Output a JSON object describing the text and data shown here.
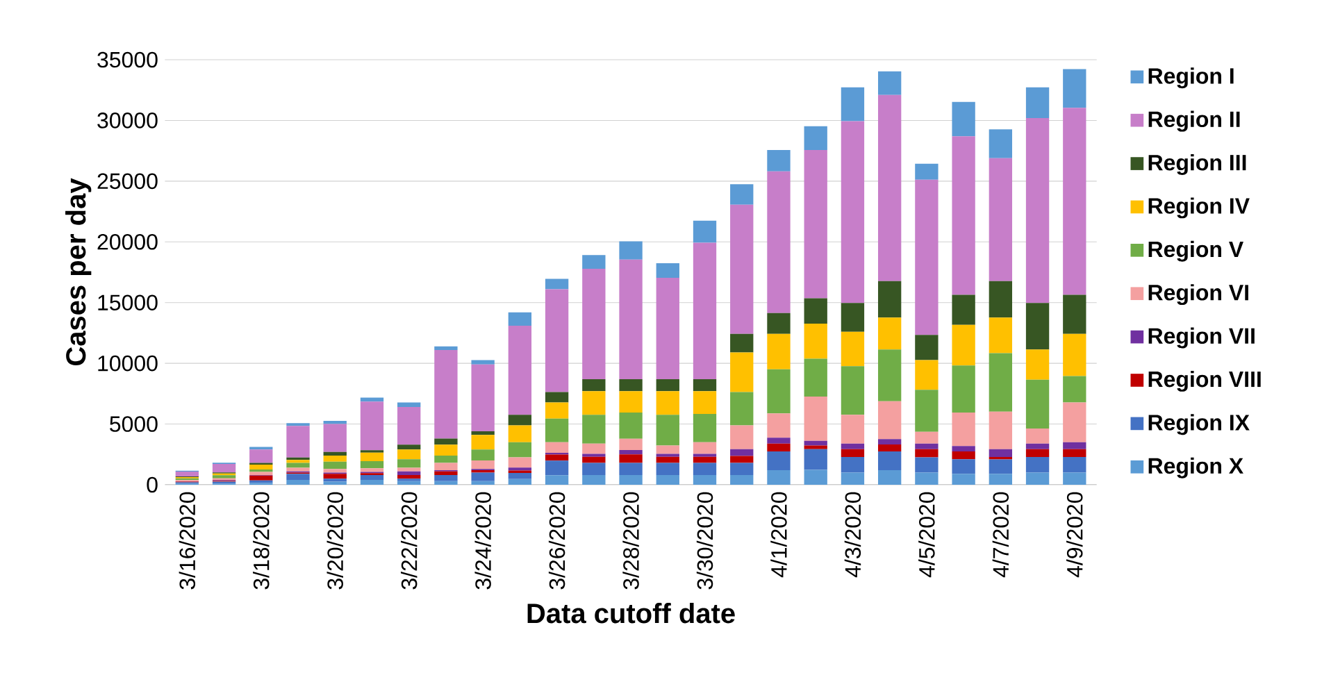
{
  "chart_data": {
    "type": "bar",
    "stacked": true,
    "xlabel": "Data cutoff date",
    "ylabel": "Cases per day",
    "categories": [
      "3/16/2020",
      null,
      "3/18/2020",
      null,
      "3/20/2020",
      null,
      "3/22/2020",
      null,
      "3/24/2020",
      null,
      "3/26/2020",
      null,
      "3/28/2020",
      null,
      "3/30/2020",
      null,
      "4/1/2020",
      null,
      "4/3/2020",
      null,
      "4/5/2020",
      null,
      "4/7/2020",
      null,
      "4/9/2020"
    ],
    "series": [
      {
        "name": "Region X",
        "color": "#5b9bd5",
        "values": [
          100,
          100,
          150,
          400,
          250,
          400,
          300,
          300,
          300,
          470,
          790,
          800,
          800,
          800,
          800,
          800,
          1200,
          1230,
          1000,
          1200,
          1000,
          900,
          900,
          1000,
          1000
        ]
      },
      {
        "name": "Region IX",
        "color": "#4472c4",
        "values": [
          100,
          150,
          200,
          500,
          250,
          400,
          200,
          500,
          700,
          500,
          1200,
          1000,
          1000,
          1000,
          1000,
          1000,
          1540,
          1700,
          1290,
          1540,
          1260,
          1200,
          1190,
          1290,
          1290
        ]
      },
      {
        "name": "Region VIII",
        "color": "#c00000",
        "values": [
          50,
          80,
          400,
          100,
          400,
          150,
          300,
          300,
          200,
          200,
          500,
          500,
          700,
          500,
          500,
          570,
          650,
          300,
          640,
          570,
          670,
          640,
          200,
          640,
          640
        ]
      },
      {
        "name": "Region VII",
        "color": "#7030a0",
        "values": [
          30,
          50,
          50,
          100,
          100,
          100,
          300,
          100,
          100,
          250,
          140,
          250,
          360,
          250,
          250,
          560,
          480,
          380,
          460,
          450,
          460,
          450,
          640,
          460,
          570
        ]
      },
      {
        "name": "Region VI",
        "color": "#f4a0a0",
        "values": [
          100,
          150,
          250,
          300,
          300,
          300,
          300,
          600,
          700,
          840,
          870,
          840,
          930,
          680,
          950,
          1960,
          2000,
          3650,
          2370,
          3120,
          970,
          2750,
          3090,
          1240,
          3270
        ]
      },
      {
        "name": "Region V",
        "color": "#70ad47",
        "values": [
          150,
          250,
          200,
          400,
          600,
          600,
          700,
          600,
          900,
          1240,
          1950,
          2370,
          2150,
          2530,
          2330,
          2740,
          3640,
          3120,
          4010,
          4250,
          3460,
          3880,
          4820,
          4020,
          2180
        ]
      },
      {
        "name": "Region IV",
        "color": "#ffc000",
        "values": [
          100,
          150,
          400,
          250,
          500,
          700,
          800,
          900,
          1200,
          1390,
          1320,
          1950,
          1770,
          1950,
          1880,
          3270,
          2910,
          2890,
          2830,
          2640,
          2450,
          3340,
          2930,
          2480,
          3470
        ]
      },
      {
        "name": "Region III",
        "color": "#375623",
        "values": [
          50,
          80,
          150,
          200,
          300,
          200,
          400,
          500,
          300,
          870,
          860,
          980,
          980,
          980,
          980,
          1520,
          1720,
          2080,
          2370,
          3000,
          2070,
          2480,
          3000,
          3840,
          3220
        ]
      },
      {
        "name": "Region II",
        "color": "#c77ec9",
        "values": [
          400,
          700,
          1100,
          2600,
          2300,
          4000,
          3100,
          7300,
          5500,
          7340,
          8470,
          9100,
          9850,
          8350,
          11240,
          10640,
          11660,
          12220,
          14970,
          15320,
          12780,
          13060,
          10130,
          15230,
          15400
        ]
      },
      {
        "name": "Region I",
        "color": "#5b9bd5",
        "values": [
          80,
          100,
          220,
          230,
          260,
          330,
          370,
          300,
          370,
          1100,
          860,
          1130,
          1510,
          1200,
          1810,
          1690,
          1770,
          1960,
          2790,
          1950,
          1320,
          2820,
          2370,
          2530,
          3190
        ]
      }
    ],
    "ylim": [
      0,
      35000
    ],
    "yticks": [
      0,
      5000,
      10000,
      15000,
      20000,
      25000,
      30000,
      35000
    ],
    "grid": "y",
    "legend": "right"
  }
}
